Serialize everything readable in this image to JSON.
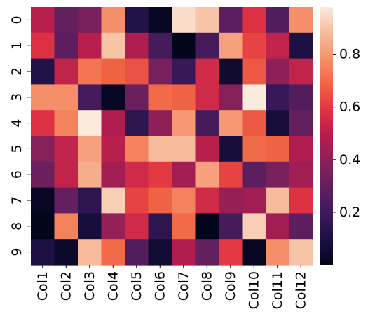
{
  "chart_data": {
    "type": "heatmap",
    "x_categories": [
      "Col1",
      "Col2",
      "Col3",
      "Col4",
      "Col5",
      "Col6",
      "Col7",
      "Col8",
      "Col9",
      "Col10",
      "Col11",
      "Col12"
    ],
    "y_categories": [
      "0",
      "1",
      "2",
      "3",
      "4",
      "5",
      "6",
      "7",
      "8",
      "9"
    ],
    "values": [
      [
        0.5,
        0.3,
        0.35,
        0.78,
        0.12,
        0.02,
        0.95,
        0.9,
        0.28,
        0.58,
        0.25,
        0.78
      ],
      [
        0.58,
        0.28,
        0.5,
        0.9,
        0.48,
        0.22,
        0.0,
        0.22,
        0.82,
        0.62,
        0.52,
        0.1
      ],
      [
        0.12,
        0.52,
        0.72,
        0.68,
        0.65,
        0.35,
        0.18,
        0.55,
        0.05,
        0.66,
        0.4,
        0.52
      ],
      [
        0.78,
        0.78,
        0.22,
        0.02,
        0.32,
        0.7,
        0.68,
        0.55,
        0.38,
        0.98,
        0.18,
        0.25
      ],
      [
        0.58,
        0.75,
        0.98,
        0.48,
        0.15,
        0.4,
        0.8,
        0.22,
        0.8,
        0.66,
        0.08,
        0.3
      ],
      [
        0.38,
        0.52,
        0.82,
        0.5,
        0.75,
        0.88,
        0.88,
        0.5,
        0.08,
        0.7,
        0.68,
        0.48
      ],
      [
        0.32,
        0.52,
        0.85,
        0.45,
        0.55,
        0.6,
        0.45,
        0.82,
        0.62,
        0.28,
        0.35,
        0.45
      ],
      [
        0.02,
        0.3,
        0.15,
        0.92,
        0.62,
        0.68,
        0.75,
        0.55,
        0.42,
        0.45,
        0.88,
        0.58
      ],
      [
        0.0,
        0.75,
        0.08,
        0.42,
        0.55,
        0.15,
        0.7,
        0.0,
        0.22,
        0.92,
        0.45,
        0.28
      ],
      [
        0.1,
        0.04,
        0.88,
        0.7,
        0.25,
        0.06,
        0.48,
        0.3,
        0.6,
        0.02,
        0.78,
        0.9
      ]
    ],
    "colorbar": {
      "colormap": "rocket",
      "vmin": 0.0,
      "vmax": 0.98,
      "ticks": [
        0.2,
        0.4,
        0.6,
        0.8
      ],
      "tick_labels": [
        "0.2",
        "0.4",
        "0.6",
        "0.8"
      ]
    },
    "title": "",
    "xlabel": "",
    "ylabel": ""
  }
}
